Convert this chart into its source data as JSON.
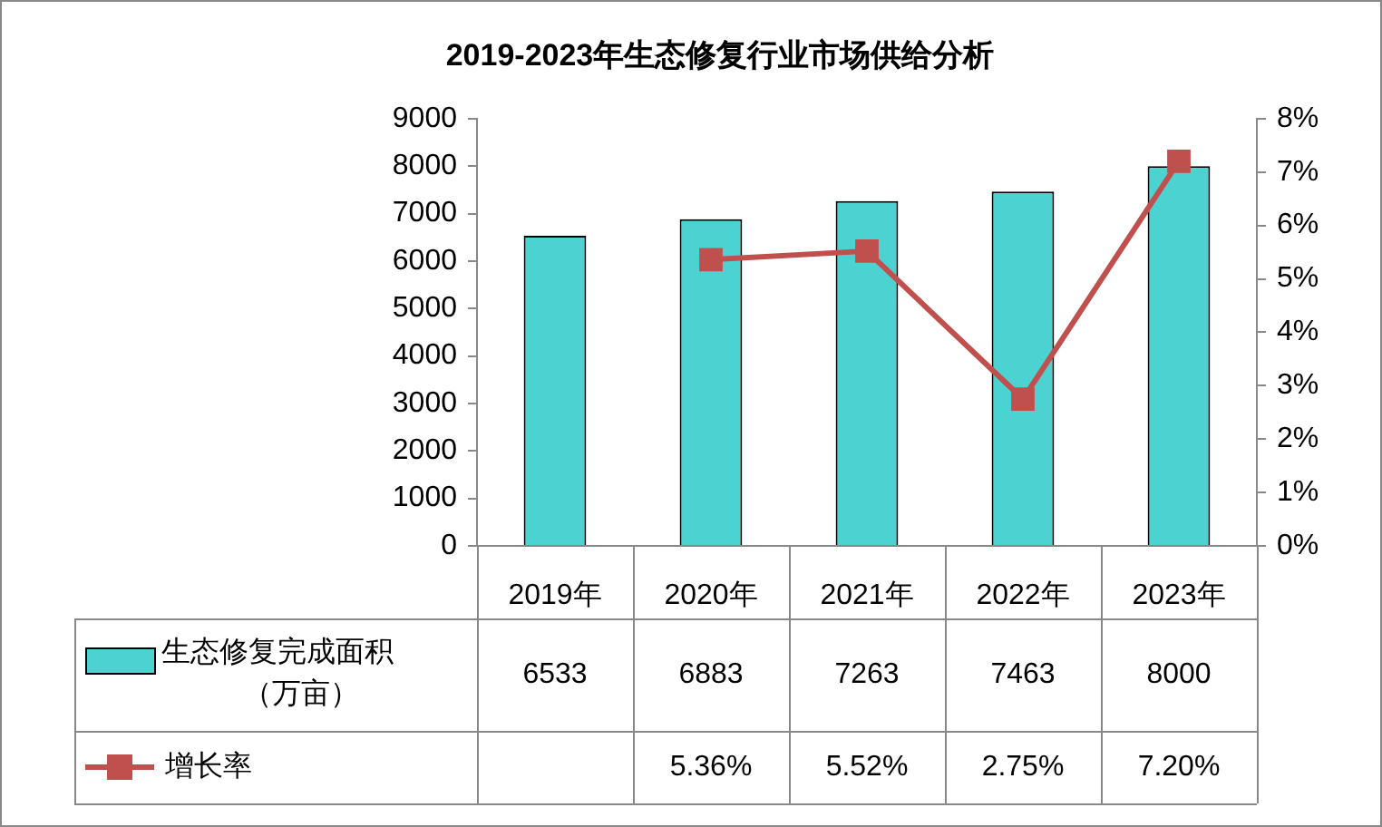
{
  "chart_data": {
    "type": "bar",
    "title": "2019-2023年生态修复行业市场供给分析",
    "categories": [
      "2019年",
      "2020年",
      "2021年",
      "2022年",
      "2023年"
    ],
    "series": [
      {
        "name": "生态修复完成面积（万亩）",
        "color": "#4dd2d2",
        "values": [
          6533,
          6883,
          7263,
          7463,
          8000
        ],
        "value_labels": [
          "6533",
          "6883",
          "7263",
          "7463",
          "8000"
        ]
      },
      {
        "name": "增长率",
        "type": "line",
        "axis": "y2",
        "color": "#c0504d",
        "marker": "square",
        "values": [
          null,
          5.36,
          5.52,
          2.75,
          7.2
        ],
        "value_labels": [
          null,
          "5.36%",
          "5.52%",
          "2.75%",
          "7.20%"
        ]
      }
    ],
    "legend": "bottom left",
    "ylim": [
      0,
      9000
    ],
    "yticks": [
      0,
      1000,
      2000,
      3000,
      4000,
      5000,
      6000,
      7000,
      8000,
      9000
    ],
    "y2lim": [
      0,
      8
    ],
    "y2ticks": [
      {
        "value": 0,
        "label": "0%"
      },
      {
        "value": 1,
        "label": "1%"
      },
      {
        "value": 2,
        "label": "2%"
      },
      {
        "value": 3,
        "label": "3%"
      },
      {
        "value": 4,
        "label": "4%"
      },
      {
        "value": 5,
        "label": "5%"
      },
      {
        "value": 6,
        "label": "6%"
      },
      {
        "value": 7,
        "label": "7%"
      },
      {
        "value": 8,
        "label": "8%"
      }
    ]
  }
}
